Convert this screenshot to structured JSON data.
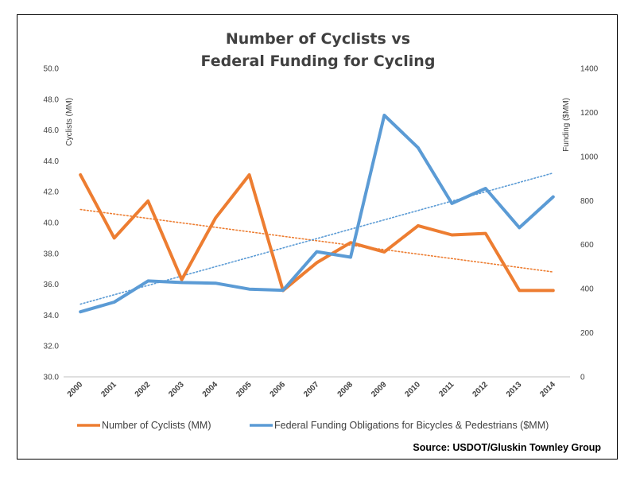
{
  "chart_data": {
    "type": "line",
    "title": [
      "Number of Cyclists vs",
      "Federal Funding for Cycling"
    ],
    "categories": [
      "2000",
      "2001",
      "2002",
      "2003",
      "2004",
      "2005",
      "2006",
      "2007",
      "2008",
      "2009",
      "2010",
      "2011",
      "2012",
      "2013",
      "2014"
    ],
    "y_left": {
      "label": "Cyclists (MM)",
      "ylim": [
        30.0,
        50.0
      ],
      "ticks": [
        "30.0",
        "32.0",
        "34.0",
        "36.0",
        "38.0",
        "40.0",
        "42.0",
        "44.0",
        "46.0",
        "48.0",
        "50.0"
      ],
      "tick_values": [
        30,
        32,
        34,
        36,
        38,
        40,
        42,
        44,
        46,
        48,
        50
      ]
    },
    "y_right": {
      "label": "Funding ($MM)",
      "ylim": [
        0,
        1400
      ],
      "ticks": [
        "0",
        "200",
        "400",
        "600",
        "800",
        "1000",
        "1200",
        "1400"
      ],
      "tick_values": [
        0,
        200,
        400,
        600,
        800,
        1000,
        1200,
        1400
      ]
    },
    "series": [
      {
        "name": "Number of Cyclists (MM)",
        "axis": "left",
        "color": "#ED7D31",
        "values": [
          43.1,
          39.0,
          41.4,
          36.3,
          40.3,
          43.1,
          35.6,
          37.4,
          38.7,
          38.1,
          39.8,
          39.2,
          39.3,
          35.6,
          35.6
        ]
      },
      {
        "name": "Federal Funding Obligations for Bicycles & Pedestrians ($MM)",
        "axis": "right",
        "color": "#5B9BD5",
        "values": [
          295,
          339,
          435,
          428,
          425,
          398,
          393,
          568,
          543,
          1187,
          1040,
          787,
          855,
          677,
          817
        ]
      }
    ],
    "trendlines": [
      {
        "series": "Number of Cyclists (MM)",
        "color": "#ED7D31",
        "style": "dotted",
        "y_start": 40.85,
        "y_end": 36.8
      },
      {
        "series": "Federal Funding Obligations for Bicycles & Pedestrians ($MM)",
        "color": "#5B9BD5",
        "style": "dotted",
        "y_start": 330,
        "y_end": 925
      }
    ],
    "legend_position": "bottom",
    "grid": false,
    "source": "Source: USDOT/Gluskin Townley Group"
  }
}
